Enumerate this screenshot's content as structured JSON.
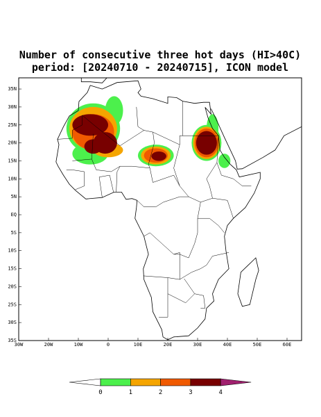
{
  "title": {
    "line1": "Number of consecutive three hot days (HI>40C)",
    "line2": "period: [20240710 - 20240715], ICON model"
  },
  "map": {
    "lat_ticks": [
      {
        "value": 35,
        "label": "35N"
      },
      {
        "value": 30,
        "label": "30N"
      },
      {
        "value": 25,
        "label": "25N"
      },
      {
        "value": 20,
        "label": "20N"
      },
      {
        "value": 15,
        "label": "15N"
      },
      {
        "value": 10,
        "label": "10N"
      },
      {
        "value": 5,
        "label": "5N"
      },
      {
        "value": 0,
        "label": "EQ"
      },
      {
        "value": -5,
        "label": "5S"
      },
      {
        "value": -10,
        "label": "10S"
      },
      {
        "value": -15,
        "label": "15S"
      },
      {
        "value": -20,
        "label": "20S"
      },
      {
        "value": -25,
        "label": "25S"
      },
      {
        "value": -30,
        "label": "30S"
      },
      {
        "value": -35,
        "label": "35S"
      }
    ],
    "lon_ticks": [
      {
        "value": -30,
        "label": "30W"
      },
      {
        "value": -20,
        "label": "20W"
      },
      {
        "value": -10,
        "label": "10W"
      },
      0,
      {
        "value": 10,
        "label": "10E"
      },
      {
        "value": 20,
        "label": "20E"
      },
      {
        "value": 30,
        "label": "30E"
      },
      {
        "value": 40,
        "label": "40E"
      },
      {
        "value": 50,
        "label": "50E"
      },
      {
        "value": 60,
        "label": "60E"
      }
    ]
  },
  "colorbar": {
    "ticks": [
      0,
      1,
      2,
      3,
      4
    ],
    "colors": [
      "#ffffff",
      "#4cf04c",
      "#f5a500",
      "#f05a00",
      "#780000",
      "#a0206e"
    ]
  }
}
